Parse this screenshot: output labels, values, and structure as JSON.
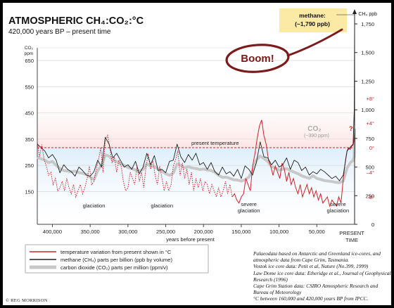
{
  "title": "ATMOSPHERIC CH₄:CO₂:°C",
  "subtitle": "420,000 years BP – present time",
  "xlabel": "years before present",
  "present_label": [
    "PRESENT",
    "TIME"
  ],
  "co2_axis_label": [
    "CO₂",
    "ppm"
  ],
  "ch4_axis_label": "CH₄ ppb",
  "annotation_boom": "Boom!",
  "methane_callout": [
    "methane:",
    "(~1,790 ppb)"
  ],
  "co2_callout": [
    "CO₂",
    "(~390 ppm)"
  ],
  "present_temperature_label": "present temperature",
  "glaciation_labels": [
    {
      "text": [
        "glaciation"
      ],
      "year": 345000
    },
    {
      "text": [
        "glaciation"
      ],
      "year": 255000
    },
    {
      "text": [
        "severe",
        "glaciation"
      ],
      "year": 140000
    },
    {
      "text": [
        "severe",
        "glaciation"
      ],
      "year": 22000
    }
  ],
  "temp_question": "?",
  "legend": [
    {
      "text": "temperature variation from present shown in °C",
      "color": "#d0222a"
    },
    {
      "text": "methane (CH₄) parts per billion (ppb by volume)",
      "color": "#222222"
    },
    {
      "text": "carbon dioxide (CO₂) parts per million (ppm/v)",
      "color": "#c8c8c8"
    }
  ],
  "source_lines": [
    "Palaeodata based on Antarctic and Greenland ice-cores, and atmospheric data from Cape Grim, Tasmania.",
    "Vostok ice core data: Petit et al, Nature (No.399, 1999)",
    "Law Dome ice core data: Etheridge et al., Journal of Geophysical Research (1996)",
    "Cape Grim Station data: CSIRO Atmospheric Research and Bureau of Meteorology",
    "°C between 160,000 and 420,000 years BP from IPCC."
  ],
  "copyright": "© REG MORRISON",
  "colors": {
    "temperature": "#d0222a",
    "methane": "#222222",
    "co2": "#c8c8c8",
    "callout": "#fbe9a6",
    "boom": "#7a1a1a",
    "warm_band": "#fde4e4",
    "cold_band": "#ddeefa"
  },
  "chart_data": {
    "type": "line",
    "x_axis": {
      "label": "years before present",
      "range": [
        420000,
        0
      ],
      "ticks": [
        400000,
        350000,
        300000,
        250000,
        200000,
        150000,
        100000,
        50000
      ],
      "tick_labels": [
        "400,000",
        "350,000",
        "300,000",
        "250,000",
        "200,000",
        "150,000",
        "100,000",
        "50,000"
      ]
    },
    "co2_axis": {
      "range": [
        100,
        650
      ],
      "ticks": [
        150,
        250,
        350,
        450,
        550,
        650
      ]
    },
    "ch4_axis": {
      "range": [
        0,
        1750
      ],
      "ticks": [
        250,
        500,
        750,
        1000,
        1250,
        1500,
        1750
      ]
    },
    "temp_axis": {
      "ticks": [
        8,
        4,
        0,
        -4,
        -8
      ],
      "tick_labels": [
        "+8°",
        "+4°",
        "0°",
        "–4°",
        "–8°"
      ]
    },
    "series": [
      {
        "name": "methane (CH₄) parts per billion (ppb by volume)",
        "unit": "ppb",
        "x": [
          420000,
          415000,
          410000,
          405000,
          400000,
          395000,
          390000,
          385000,
          380000,
          375000,
          370000,
          365000,
          360000,
          355000,
          350000,
          345000,
          340000,
          335000,
          330000,
          325000,
          320000,
          315000,
          310000,
          305000,
          300000,
          295000,
          290000,
          285000,
          280000,
          275000,
          270000,
          265000,
          260000,
          255000,
          250000,
          245000,
          240000,
          235000,
          230000,
          225000,
          220000,
          215000,
          210000,
          205000,
          200000,
          195000,
          190000,
          185000,
          180000,
          175000,
          170000,
          165000,
          160000,
          155000,
          150000,
          145000,
          140000,
          135000,
          130000,
          125000,
          120000,
          115000,
          110000,
          105000,
          100000,
          95000,
          90000,
          85000,
          80000,
          75000,
          70000,
          65000,
          60000,
          55000,
          50000,
          45000,
          40000,
          35000,
          30000,
          25000,
          20000,
          15000,
          10000,
          5000,
          2000,
          500,
          0
        ],
        "values": [
          700,
          670,
          640,
          580,
          610,
          560,
          450,
          520,
          480,
          460,
          420,
          500,
          470,
          430,
          420,
          460,
          560,
          500,
          760,
          700,
          580,
          620,
          560,
          500,
          520,
          480,
          550,
          440,
          500,
          620,
          520,
          600,
          470,
          480,
          450,
          550,
          560,
          700,
          590,
          540,
          610,
          560,
          620,
          520,
          540,
          480,
          540,
          460,
          430,
          500,
          440,
          460,
          420,
          480,
          400,
          510,
          480,
          430,
          540,
          720,
          590,
          580,
          520,
          560,
          500,
          520,
          580,
          480,
          560,
          540,
          470,
          500,
          430,
          460,
          440,
          480,
          460,
          430,
          400,
          420,
          380,
          430,
          640,
          680,
          700,
          1000,
          1790
        ]
      },
      {
        "name": "carbon dioxide (CO₂) parts per million (ppm/v)",
        "unit": "ppm",
        "x": [
          420000,
          415000,
          410000,
          405000,
          400000,
          395000,
          390000,
          385000,
          380000,
          375000,
          370000,
          365000,
          360000,
          355000,
          350000,
          345000,
          340000,
          335000,
          330000,
          325000,
          320000,
          315000,
          310000,
          305000,
          300000,
          295000,
          290000,
          285000,
          280000,
          275000,
          270000,
          265000,
          260000,
          255000,
          250000,
          245000,
          240000,
          235000,
          230000,
          225000,
          220000,
          215000,
          210000,
          205000,
          200000,
          195000,
          190000,
          185000,
          180000,
          175000,
          170000,
          165000,
          160000,
          155000,
          150000,
          145000,
          140000,
          135000,
          130000,
          125000,
          120000,
          115000,
          110000,
          105000,
          100000,
          95000,
          90000,
          85000,
          80000,
          75000,
          70000,
          65000,
          60000,
          55000,
          50000,
          45000,
          40000,
          35000,
          30000,
          25000,
          20000,
          15000,
          10000,
          5000,
          2000,
          500,
          0
        ],
        "values": [
          280,
          275,
          270,
          260,
          265,
          250,
          238,
          230,
          228,
          225,
          228,
          222,
          220,
          215,
          205,
          195,
          230,
          250,
          290,
          285,
          270,
          265,
          255,
          250,
          242,
          238,
          232,
          228,
          234,
          255,
          248,
          245,
          235,
          228,
          218,
          212,
          220,
          255,
          250,
          240,
          245,
          240,
          238,
          234,
          236,
          232,
          230,
          224,
          212,
          204,
          205,
          200,
          195,
          194,
          190,
          195,
          205,
          230,
          270,
          285,
          276,
          265,
          245,
          240,
          232,
          235,
          238,
          230,
          224,
          218,
          210,
          205,
          200,
          210,
          200,
          196,
          192,
          190,
          188,
          185,
          184,
          190,
          240,
          262,
          268,
          285,
          390
        ]
      },
      {
        "name": "temperature variation from present shown in °C",
        "unit": "°C",
        "x": [
          420000,
          417000,
          414000,
          411000,
          408000,
          405000,
          402000,
          399000,
          396000,
          393000,
          390000,
          387000,
          384000,
          381000,
          378000,
          375000,
          372000,
          369000,
          366000,
          363000,
          360000,
          357000,
          354000,
          351000,
          348000,
          345000,
          342000,
          339000,
          336000,
          333000,
          330000,
          327000,
          324000,
          321000,
          318000,
          315000,
          312000,
          309000,
          306000,
          303000,
          300000,
          297000,
          294000,
          291000,
          288000,
          285000,
          282000,
          279000,
          276000,
          273000,
          270000,
          267000,
          264000,
          261000,
          258000,
          255000,
          252000,
          249000,
          246000,
          243000,
          240000,
          237000,
          234000,
          231000,
          228000,
          225000,
          222000,
          219000,
          216000,
          213000,
          210000,
          207000,
          204000,
          201000,
          198000,
          195000,
          192000,
          189000,
          186000,
          183000,
          180000,
          177000,
          174000,
          171000,
          168000,
          165000,
          162000,
          159000,
          156000,
          153000,
          150000,
          147000,
          144000,
          141000,
          138000,
          135000,
          132000,
          129000,
          126000,
          123000,
          120000,
          117000,
          114000,
          111000,
          108000,
          105000,
          102000,
          99000,
          96000,
          93000,
          90000,
          87000,
          84000,
          81000,
          78000,
          75000,
          72000,
          69000,
          66000,
          63000,
          60000,
          57000,
          54000,
          51000,
          48000,
          45000,
          42000,
          39000,
          36000,
          33000,
          30000,
          27000,
          24000,
          21000,
          18000,
          15000,
          12000,
          10000,
          8000,
          6000,
          4000,
          2000,
          1000,
          0
        ],
        "values": [
          1.0,
          -1.5,
          0.5,
          -2.0,
          -3.0,
          -4.5,
          -4.0,
          -6.0,
          -5.0,
          -7.0,
          -6.5,
          -5.5,
          -7.0,
          -5.0,
          -6.5,
          -7.5,
          -6.0,
          -8.0,
          -7.0,
          -6.0,
          -7.5,
          -6.5,
          -5.0,
          -3.0,
          -6.0,
          -5.5,
          -3.5,
          -2.0,
          0.0,
          -4.0,
          1.0,
          2.0,
          0.0,
          -2.5,
          -1.5,
          -4.0,
          -2.0,
          -3.0,
          -5.5,
          -7.0,
          -6.5,
          -4.0,
          -5.0,
          -6.0,
          -3.0,
          -5.5,
          -4.0,
          -6.5,
          -3.0,
          -1.0,
          -3.5,
          -2.0,
          -4.5,
          -6.0,
          -3.0,
          -5.0,
          -7.0,
          -5.5,
          -7.0,
          -6.0,
          -3.0,
          -2.0,
          -0.5,
          -4.5,
          -2.5,
          -5.0,
          -3.5,
          -6.0,
          -4.0,
          -7.0,
          -5.0,
          -6.5,
          -5.0,
          -7.0,
          -5.5,
          -6.0,
          -7.5,
          -6.0,
          -7.0,
          -8.0,
          -6.5,
          -8.0,
          -7.0,
          -5.5,
          -7.5,
          -6.0,
          -8.0,
          -7.5,
          -8.5,
          -9.0,
          -8.0,
          -7.5,
          -5.0,
          -6.0,
          -7.0,
          -3.0,
          -1.0,
          1.5,
          3.5,
          4.5,
          2.0,
          0.5,
          -2.0,
          -3.0,
          -4.5,
          -3.0,
          -4.0,
          -5.0,
          -2.5,
          -3.5,
          -5.5,
          -4.0,
          -6.0,
          -5.0,
          -6.5,
          -7.5,
          -6.0,
          -8.0,
          -7.0,
          -6.0,
          -7.5,
          -6.5,
          -8.0,
          -7.0,
          -8.5,
          -7.5,
          -9.0,
          -8.5,
          -8.0,
          -9.5,
          -8.5,
          -9.0,
          -9.5,
          -8.0,
          -9.0,
          -5.0,
          -2.0,
          -0.5,
          0.0,
          -0.3,
          0.2,
          0.5,
          1.0,
          2.5
        ]
      }
    ]
  }
}
